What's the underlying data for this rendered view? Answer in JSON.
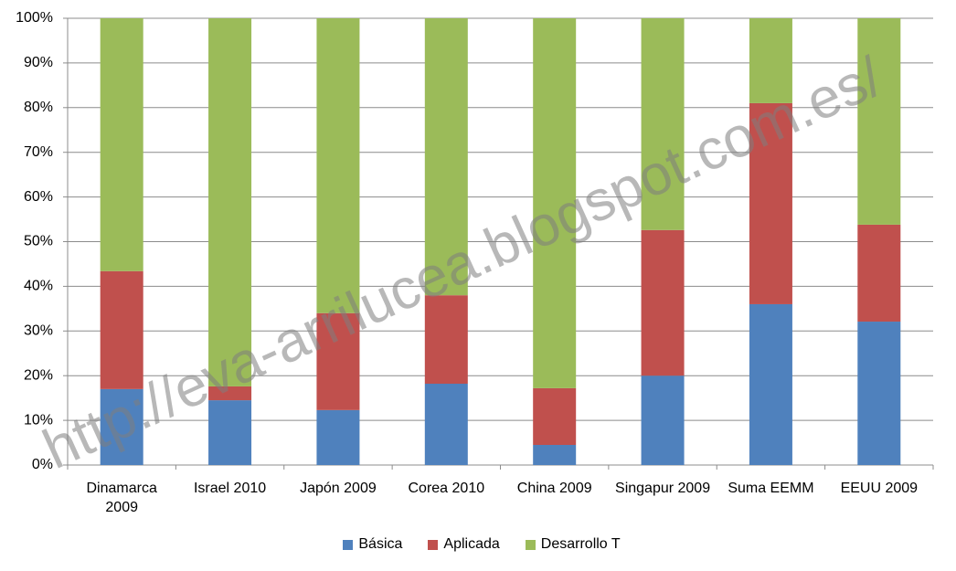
{
  "chart_data": {
    "type": "stacked-bar-100",
    "categories": [
      "Dinamarca 2009",
      "Israel 2010",
      "Japón 2009",
      "Corea 2010",
      "China 2009",
      "Singapur 2009",
      "Suma EEMM",
      "EEUU 2009"
    ],
    "series": [
      {
        "name": "Básica",
        "color": "#4f81bd",
        "values": [
          17,
          14.5,
          12.3,
          18.2,
          4.5,
          20.0,
          36.0,
          32.1
        ]
      },
      {
        "name": "Aplicada",
        "color": "#c0504d",
        "values": [
          26.4,
          3.1,
          21.7,
          19.8,
          12.7,
          32.6,
          45.0,
          21.7
        ]
      },
      {
        "name": "Desarrollo T",
        "color": "#9bbb59",
        "values": [
          56.6,
          82.4,
          66.0,
          62.0,
          82.8,
          47.4,
          19.0,
          46.2
        ]
      }
    ],
    "ylim": [
      0,
      100
    ],
    "yticks": [
      {
        "value": 0,
        "label": "0%"
      },
      {
        "value": 10,
        "label": "10%"
      },
      {
        "value": 20,
        "label": "20%"
      },
      {
        "value": 30,
        "label": "30%"
      },
      {
        "value": 40,
        "label": "40%"
      },
      {
        "value": 50,
        "label": "50%"
      },
      {
        "value": 60,
        "label": "60%"
      },
      {
        "value": 70,
        "label": "70%"
      },
      {
        "value": 80,
        "label": "80%"
      },
      {
        "value": 90,
        "label": "90%"
      },
      {
        "value": 100,
        "label": "100%"
      }
    ],
    "grid": true,
    "legend": "bottom",
    "watermark": "http://eva-arrilucea.blogspot.com.es/"
  }
}
